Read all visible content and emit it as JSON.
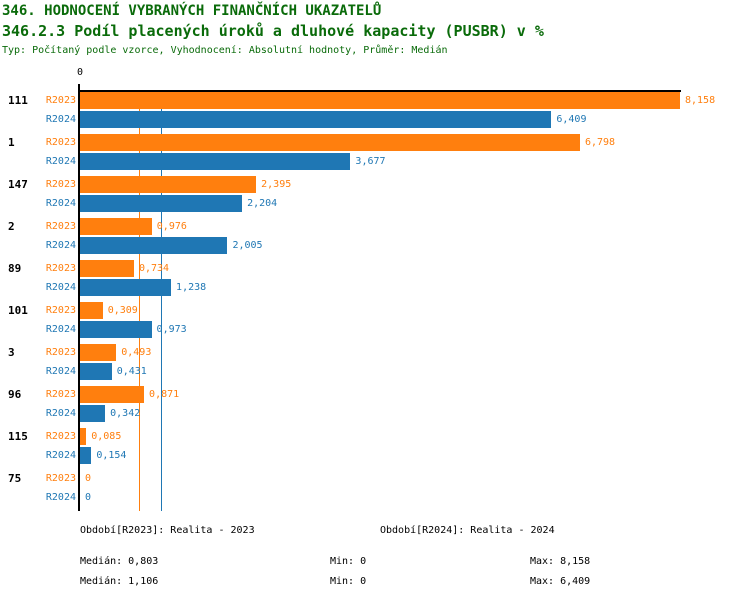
{
  "header": {
    "title": "346. HODNOCENÍ VYBRANÝCH FINANČNÍCH UKAZATELŮ",
    "subtitle": "346.2.3 Podíl placených úroků a dluhové kapacity (PUSBR) v %",
    "type_line": "Typ: Počítaný podle vzorce, Vyhodnocení: Absolutní hodnoty, Průměr: Medián"
  },
  "colors": {
    "title_green": "#0a6b0a",
    "r2023_orange": "#FF7F0E",
    "r2024_blue": "#1F77B4",
    "axis_black": "#000000"
  },
  "chart_data": {
    "type": "bar",
    "orientation": "horizontal",
    "title": "346.2.3 Podíl placených úroků a dluhové kapacity (PUSBR) v %",
    "xlabel": "",
    "ylabel": "",
    "xlim": [
      0,
      8.158
    ],
    "zero_tick_label": "0",
    "grid": false,
    "categories": [
      "111",
      "1",
      "147",
      "2",
      "89",
      "101",
      "3",
      "96",
      "115",
      "75"
    ],
    "series": [
      {
        "name": "R2023",
        "color": "#FF7F0E",
        "values": [
          8.158,
          6.798,
          2.395,
          0.976,
          0.734,
          0.309,
          0.493,
          0.871,
          0.085,
          0
        ],
        "labels": [
          "8,158",
          "6,798",
          "2,395",
          "0,976",
          "0,734",
          "0,309",
          "0,493",
          "0,871",
          "0,085",
          "0"
        ],
        "median": 0.803
      },
      {
        "name": "R2024",
        "color": "#1F77B4",
        "values": [
          6.409,
          3.677,
          2.204,
          2.005,
          1.238,
          0.973,
          0.431,
          0.342,
          0.154,
          0
        ],
        "labels": [
          "6,409",
          "3,677",
          "2,204",
          "2,005",
          "1,238",
          "0,973",
          "0,431",
          "0,342",
          "0,154",
          "0"
        ],
        "median": 1.106
      }
    ],
    "median_lines": [
      {
        "series": "R2023",
        "value": 0.803
      },
      {
        "series": "R2024",
        "value": 1.106
      }
    ],
    "legend_position": "none",
    "value_format": "comma-decimal"
  },
  "footer": {
    "period_r2023": "Období[R2023]: Realita - 2023",
    "period_r2024": "Období[R2024]: Realita - 2024",
    "r2023": {
      "median": "Medián: 0,803",
      "min": "Min: 0",
      "max": "Max: 8,158"
    },
    "r2024": {
      "median": "Medián: 1,106",
      "min": "Min: 0",
      "max": "Max: 6,409"
    }
  }
}
